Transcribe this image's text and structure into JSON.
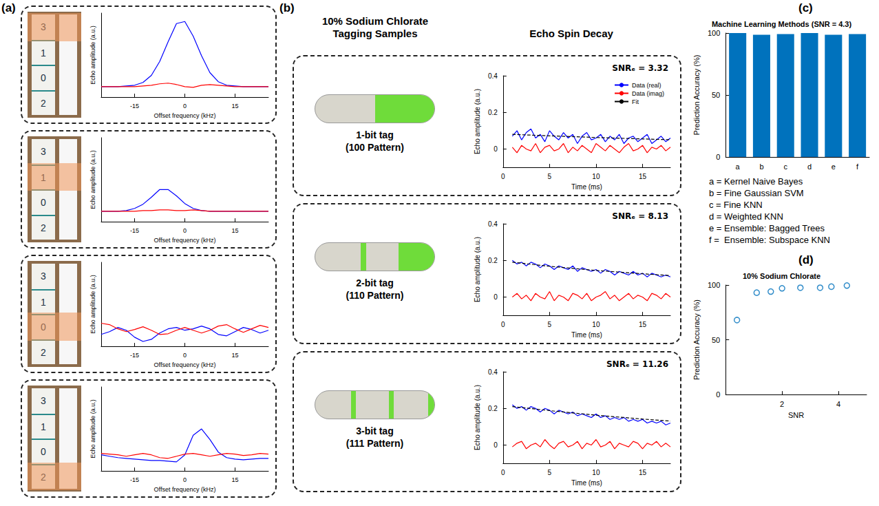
{
  "panel_letters": [
    "(a)",
    "(b)",
    "(c)",
    "(d)"
  ],
  "panel_a": {
    "stick_labels": [
      "3",
      "1",
      "0",
      "2"
    ]
  },
  "panel_b": {
    "sample_heading": "10% Sodium Chlorate Tagging Samples",
    "decay_heading": "Echo Spin Decay",
    "tags": [
      {
        "name": "1-bit tag",
        "pattern": "(100 Pattern)"
      },
      {
        "name": "2-bit tag",
        "pattern": "(110 Pattern)"
      },
      {
        "name": "3-bit tag",
        "pattern": "(111 Pattern)"
      }
    ]
  },
  "chart_data": [
    {
      "type": "line",
      "x_label": "Offset frequency (kHz)",
      "y_label": "Echo amplitude (a.u.)",
      "x": [
        -25,
        -22.5,
        -20,
        -17.5,
        -15,
        -12.5,
        -10,
        -7.5,
        -5,
        -2.5,
        0,
        2.5,
        5,
        7.5,
        10,
        12.5,
        15,
        17.5,
        20,
        22.5,
        25
      ],
      "xlim": [
        -25,
        25
      ],
      "xticks": [
        -15,
        0,
        15
      ],
      "ylim": [
        -0.15,
        1.05
      ],
      "tick_labels": "x",
      "series": [
        {
          "color": "#0000ff",
          "values": [
            0,
            0,
            0,
            0.01,
            0.02,
            0.06,
            0.16,
            0.36,
            0.64,
            0.9,
            0.93,
            0.72,
            0.44,
            0.2,
            0.07,
            0.02,
            0.01,
            0,
            0,
            0,
            0
          ]
        },
        {
          "color": "#ff0000",
          "values": [
            0,
            0,
            0,
            0,
            0,
            0.01,
            0.02,
            0.04,
            0.05,
            0.03,
            0,
            -0.01,
            0.02,
            0.03,
            0.02,
            0.01,
            0,
            0,
            0,
            0,
            0
          ]
        }
      ]
    },
    {
      "type": "line",
      "x_label": "Offset frequency (kHz)",
      "y_label": "Echo amplitude (a.u.)",
      "x": [
        -25,
        -22.5,
        -20,
        -17.5,
        -15,
        -12.5,
        -10,
        -7.5,
        -5,
        -2.5,
        0,
        2.5,
        5,
        7.5,
        10,
        12.5,
        15,
        17.5,
        20,
        22.5,
        25
      ],
      "xlim": [
        -25,
        25
      ],
      "xticks": [
        -15,
        0,
        15
      ],
      "ylim": [
        -0.15,
        1.05
      ],
      "tick_labels": "x",
      "series": [
        {
          "color": "#0000ff",
          "values": [
            0,
            0,
            0,
            0.01,
            0.04,
            0.1,
            0.2,
            0.31,
            0.31,
            0.22,
            0.11,
            0.04,
            0.01,
            0,
            0,
            0,
            0,
            0,
            0,
            0,
            0
          ]
        },
        {
          "color": "#ff0000",
          "values": [
            0,
            0,
            0,
            0,
            0,
            0.01,
            0.01,
            0.02,
            0.02,
            0.01,
            0.01,
            0.02,
            0.01,
            0,
            0,
            0,
            0,
            0,
            0,
            0,
            0
          ]
        }
      ]
    },
    {
      "type": "line",
      "x_label": "Offset frequency (kHz)",
      "y_label": "Echo amplitude (a.u.)",
      "x": [
        -25,
        -22.5,
        -20,
        -17.5,
        -15,
        -12.5,
        -10,
        -7.5,
        -5,
        -2.5,
        0,
        2.5,
        5,
        7.5,
        10,
        12.5,
        15,
        17.5,
        20,
        22.5,
        25
      ],
      "xlim": [
        -25,
        25
      ],
      "xticks": [
        -15,
        0,
        15
      ],
      "ylim": [
        -0.15,
        1.05
      ],
      "tick_labels": "x",
      "series": [
        {
          "color": "#0000ff",
          "values": [
            0.02,
            0.06,
            0.12,
            0.08,
            -0.02,
            -0.08,
            -0.05,
            0.04,
            0.1,
            0.12,
            0.08,
            0.1,
            0.14,
            0.1,
            0.02,
            0,
            0.06,
            0.12,
            0.09,
            0.04,
            0.08
          ]
        },
        {
          "color": "#ff0000",
          "values": [
            0.18,
            0.16,
            0.1,
            0.06,
            0.09,
            0.13,
            0.08,
            0.02,
            0.03,
            0.08,
            0.12,
            0.08,
            0.04,
            0.08,
            0.14,
            0.16,
            0.1,
            0.05,
            0.1,
            0.15,
            0.12
          ]
        }
      ]
    },
    {
      "type": "line",
      "x_label": "Offset frequency (kHz)",
      "y_label": "Echo amplitude (a.u.)",
      "x": [
        -25,
        -22.5,
        -20,
        -17.5,
        -15,
        -12.5,
        -10,
        -7.5,
        -5,
        -2.5,
        0,
        2.5,
        5,
        7.5,
        10,
        12.5,
        15,
        17.5,
        20,
        22.5,
        25
      ],
      "xlim": [
        -25,
        25
      ],
      "xticks": [
        -15,
        0,
        15
      ],
      "ylim": [
        -0.15,
        1.05
      ],
      "tick_labels": "x",
      "series": [
        {
          "color": "#0000ff",
          "values": [
            0.08,
            0.06,
            0.04,
            0.03,
            0.02,
            0.01,
            0,
            0,
            -0.01,
            -0.02,
            0.08,
            0.36,
            0.45,
            0.3,
            0.12,
            0.04,
            0.02,
            0.01,
            0.02,
            0.03,
            0.03
          ]
        },
        {
          "color": "#ff0000",
          "values": [
            0.1,
            0.09,
            0.08,
            0.06,
            0.08,
            0.1,
            0.08,
            0.04,
            0.03,
            0.06,
            0.09,
            0.1,
            0.08,
            0.06,
            0.08,
            0.1,
            0.09,
            0.07,
            0.08,
            0.1,
            0.09
          ]
        }
      ]
    },
    {
      "type": "line",
      "title": "SNRₑ = 3.32",
      "x_label": "Time (ms)",
      "y_label": "Echo amplitude (a.u.)",
      "x": [
        1,
        1.5,
        2,
        2.5,
        3,
        3.5,
        4,
        4.5,
        5,
        5.5,
        6,
        6.5,
        7,
        7.5,
        8,
        8.5,
        9,
        9.5,
        10,
        10.5,
        11,
        11.5,
        12,
        12.5,
        13,
        13.5,
        14,
        14.5,
        15,
        15.5,
        16,
        16.5,
        17,
        17.5,
        18
      ],
      "xlim": [
        0,
        18
      ],
      "xticks": [
        0,
        5,
        10,
        15
      ],
      "ylim": [
        -0.1,
        0.4
      ],
      "yticks": [
        0,
        0.2,
        0.4
      ],
      "legend": "upper right",
      "series": [
        {
          "name": "Data (real)",
          "color": "#0000ff",
          "values": [
            0.07,
            0.1,
            0.05,
            0.09,
            0.11,
            0.06,
            0.08,
            0.04,
            0.1,
            0.07,
            0.05,
            0.09,
            0.06,
            0.08,
            0.03,
            0.07,
            0.09,
            0.05,
            0.06,
            0.08,
            0.04,
            0.07,
            0.05,
            0.08,
            0.03,
            0.06,
            0.07,
            0.04,
            0.06,
            0.08,
            0.03,
            0.05,
            0.07,
            0.04,
            0.06
          ]
        },
        {
          "name": "Data (imag)",
          "color": "#ff0000",
          "values": [
            0.01,
            -0.02,
            0.02,
            0,
            -0.01,
            0.03,
            -0.02,
            0.01,
            0.02,
            -0.01,
            0,
            0.03,
            -0.02,
            0.01,
            -0.01,
            0.02,
            0,
            -0.02,
            0.03,
            0.01,
            -0.01,
            0.02,
            0,
            -0.02,
            0.01,
            0.03,
            -0.01,
            0,
            0.02,
            -0.02,
            0.01,
            0,
            0.02,
            -0.01,
            0.01
          ]
        },
        {
          "name": "Fit",
          "color": "#000000",
          "line_style": "dashed",
          "x": [
            1,
            5,
            10,
            15,
            18
          ],
          "values": [
            0.08,
            0.072,
            0.063,
            0.055,
            0.051
          ]
        }
      ]
    },
    {
      "type": "line",
      "title": "SNRₑ = 8.13",
      "x_label": "Time (ms)",
      "y_label": "Echo amplitude (a.u.)",
      "x": [
        1,
        1.5,
        2,
        2.5,
        3,
        3.5,
        4,
        4.5,
        5,
        5.5,
        6,
        6.5,
        7,
        7.5,
        8,
        8.5,
        9,
        9.5,
        10,
        10.5,
        11,
        11.5,
        12,
        12.5,
        13,
        13.5,
        14,
        14.5,
        15,
        15.5,
        16,
        16.5,
        17,
        17.5,
        18
      ],
      "xlim": [
        0,
        18
      ],
      "xticks": [
        0,
        5,
        10,
        15
      ],
      "ylim": [
        -0.1,
        0.4
      ],
      "yticks": [
        0,
        0.2,
        0.4
      ],
      "series": [
        {
          "color": "#0000ff",
          "values": [
            0.2,
            0.18,
            0.19,
            0.17,
            0.19,
            0.18,
            0.16,
            0.18,
            0.17,
            0.15,
            0.17,
            0.16,
            0.15,
            0.17,
            0.14,
            0.16,
            0.15,
            0.14,
            0.15,
            0.13,
            0.15,
            0.14,
            0.12,
            0.14,
            0.13,
            0.12,
            0.14,
            0.12,
            0.13,
            0.11,
            0.13,
            0.12,
            0.11,
            0.12,
            0.11
          ]
        },
        {
          "color": "#ff0000",
          "values": [
            0,
            0.02,
            -0.01,
            0.01,
            -0.02,
            0.02,
            0,
            -0.01,
            0.03,
            -0.02,
            0.01,
            0,
            -0.02,
            0.02,
            0.01,
            -0.01,
            0.02,
            -0.02,
            0,
            0.01,
            0.03,
            -0.01,
            0.01,
            -0.02,
            0,
            0.02,
            -0.01,
            0.01,
            0,
            -0.02,
            0.02,
            0.01,
            -0.01,
            0.02,
            0
          ]
        },
        {
          "color": "#000000",
          "line_style": "dashed",
          "x": [
            1,
            5,
            10,
            15,
            18
          ],
          "values": [
            0.19,
            0.168,
            0.145,
            0.127,
            0.117
          ]
        }
      ]
    },
    {
      "type": "line",
      "title": "SNRₑ = 11.26",
      "x_label": "Time (ms)",
      "y_label": "Echo amplitude (a.u.)",
      "x": [
        1,
        1.5,
        2,
        2.5,
        3,
        3.5,
        4,
        4.5,
        5,
        5.5,
        6,
        6.5,
        7,
        7.5,
        8,
        8.5,
        9,
        9.5,
        10,
        10.5,
        11,
        11.5,
        12,
        12.5,
        13,
        13.5,
        14,
        14.5,
        15,
        15.5,
        16,
        16.5,
        17,
        17.5,
        18
      ],
      "xlim": [
        0,
        18
      ],
      "xticks": [
        0,
        5,
        10,
        15
      ],
      "ylim": [
        -0.1,
        0.4
      ],
      "yticks": [
        0,
        0.2,
        0.4
      ],
      "series": [
        {
          "color": "#0000ff",
          "values": [
            0.22,
            0.2,
            0.21,
            0.19,
            0.21,
            0.2,
            0.18,
            0.2,
            0.19,
            0.17,
            0.19,
            0.18,
            0.17,
            0.18,
            0.16,
            0.17,
            0.16,
            0.15,
            0.17,
            0.15,
            0.16,
            0.14,
            0.15,
            0.14,
            0.15,
            0.13,
            0.14,
            0.13,
            0.14,
            0.12,
            0.13,
            0.12,
            0.13,
            0.11,
            0.12
          ]
        },
        {
          "color": "#ff0000",
          "values": [
            -0.01,
            0.01,
            0.02,
            -0.02,
            0,
            0.01,
            -0.01,
            0.03,
            0,
            -0.02,
            0.01,
            0.02,
            -0.01,
            0,
            0.02,
            -0.02,
            0.01,
            0,
            0.03,
            -0.01,
            0,
            0.02,
            -0.02,
            0.01,
            0,
            -0.01,
            0.02,
            0.01,
            -0.02,
            0.01,
            0,
            0.02,
            -0.01,
            0.01,
            -0.01
          ]
        },
        {
          "color": "#000000",
          "line_style": "dashed",
          "x": [
            1,
            5,
            10,
            15,
            18
          ],
          "values": [
            0.21,
            0.188,
            0.163,
            0.142,
            0.131
          ]
        }
      ]
    },
    {
      "type": "bar",
      "title": "Machine Learning Methods (SNR = 4.3)",
      "y_label": "Prediction Accuracy (%)",
      "categories": [
        "a",
        "b",
        "c",
        "d",
        "e",
        "f"
      ],
      "values": [
        100,
        98.6,
        99.2,
        100,
        98.6,
        99.2
      ],
      "color": "#0072bd",
      "ylim": [
        0,
        100
      ],
      "yticks": [
        0,
        50,
        100
      ],
      "annotations": [
        "a = Kernel Naive Bayes",
        "b = Fine Gaussian SVM",
        "c = Fine KNN",
        "d = Weighted KNN",
        "e = Ensemble: Bagged Trees",
        "f =  Ensemble: Subspace KNN"
      ]
    },
    {
      "type": "scatter",
      "title": "10% Sodium Chlorate",
      "x_label": "SNR",
      "y_label": "Prediction Accuracy (%)",
      "x": [
        0.4,
        1.1,
        1.6,
        2,
        2.65,
        3.35,
        3.75,
        4.3
      ],
      "values": [
        68,
        93,
        94,
        97,
        97.5,
        97.5,
        98.5,
        99.5
      ],
      "color": "#0072bd",
      "marker": "o",
      "xlim": [
        0,
        5
      ],
      "xticks": [
        2,
        4
      ],
      "ylim": [
        0,
        100
      ],
      "yticks": [
        0,
        50,
        100
      ]
    }
  ]
}
